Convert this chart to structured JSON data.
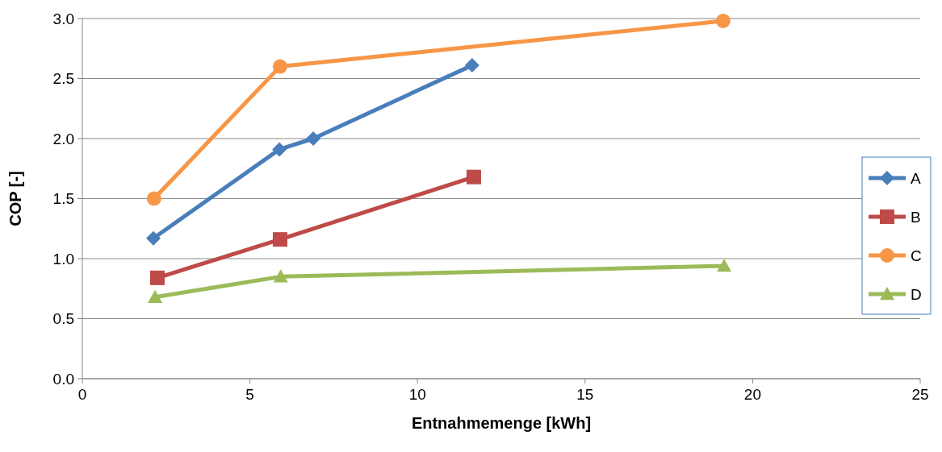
{
  "chart_data": {
    "type": "line",
    "xlabel": "Entnahmemenge [kWh]",
    "ylabel": "COP [-]",
    "xlim": [
      0,
      25
    ],
    "xticks": [
      0,
      5,
      10,
      15,
      20,
      25
    ],
    "ylim": [
      0,
      3
    ],
    "yticks": [
      {
        "value": 0,
        "label": "0.0"
      },
      {
        "value": 0.5,
        "label": "0.5"
      },
      {
        "value": 1,
        "label": "1.0"
      },
      {
        "value": 1.5,
        "label": "1.5"
      },
      {
        "value": 2,
        "label": "2.0"
      },
      {
        "value": 2.5,
        "label": "2.5"
      },
      {
        "value": 3,
        "label": "3.0"
      }
    ],
    "grid": "y",
    "legend": "right",
    "line_style": "solid",
    "series": [
      {
        "name": "A",
        "color": "#4a7ebb",
        "marker": "diamond",
        "x": [
          2.12,
          5.88,
          6.89,
          11.63
        ],
        "values": [
          1.17,
          1.91,
          2.0,
          2.61
        ]
      },
      {
        "name": "B",
        "color": "#be4b48",
        "marker": "square",
        "x": [
          2.24,
          5.9,
          11.68
        ],
        "values": [
          0.84,
          1.16,
          1.68
        ]
      },
      {
        "name": "C",
        "color": "#f79646",
        "marker": "circle",
        "x": [
          2.14,
          5.9,
          19.12
        ],
        "values": [
          1.5,
          2.6,
          2.98
        ]
      },
      {
        "name": "D",
        "color": "#9bbb59",
        "marker": "triangle",
        "x": [
          2.17,
          5.92,
          19.15
        ],
        "values": [
          0.68,
          0.85,
          0.94
        ]
      }
    ]
  }
}
